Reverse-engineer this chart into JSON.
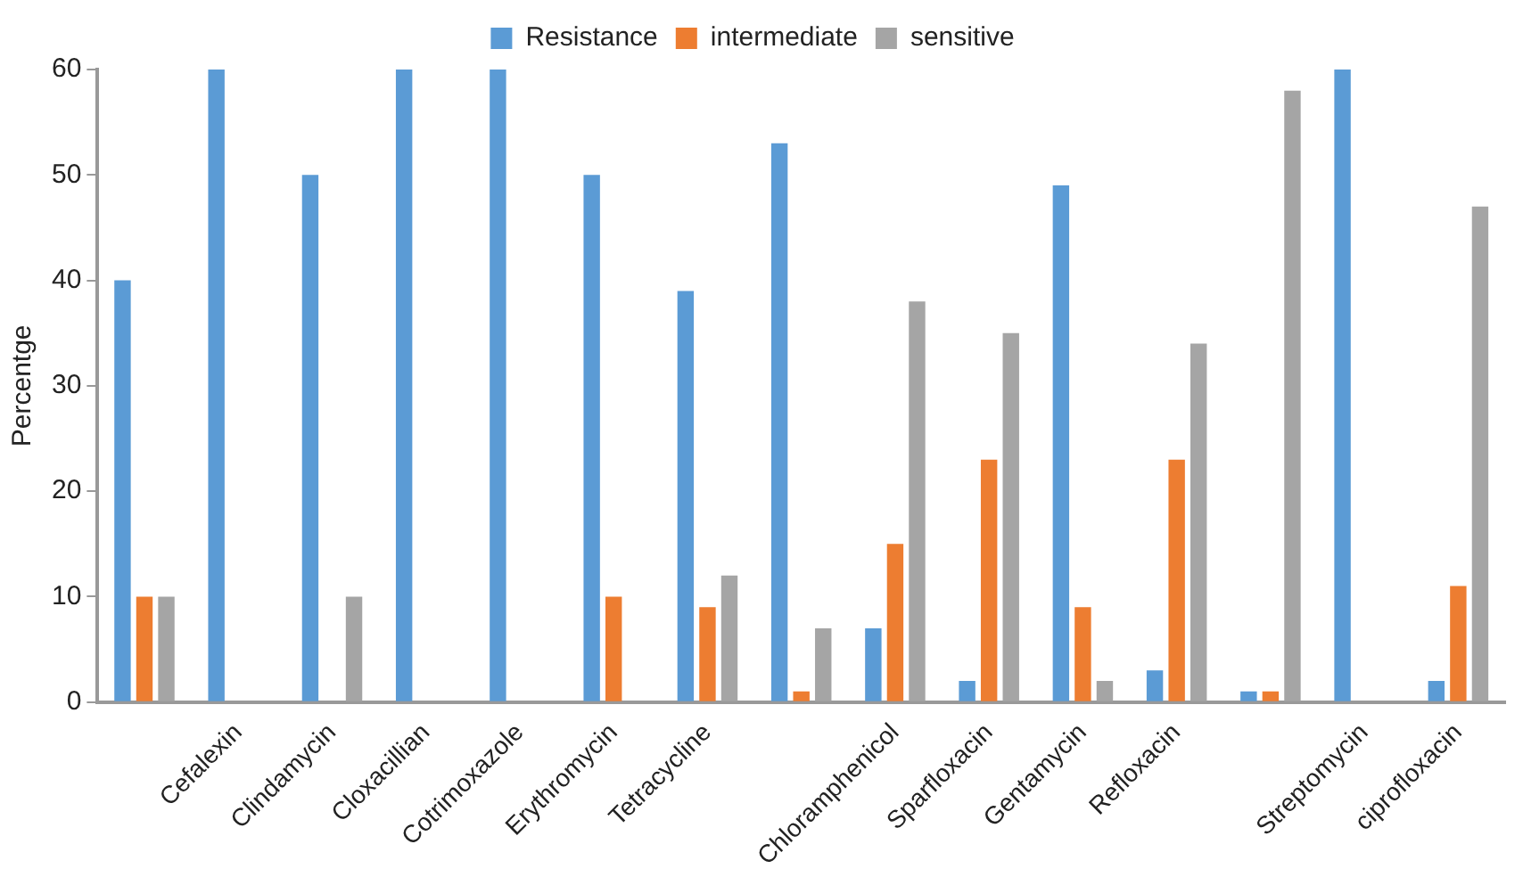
{
  "chart_data": {
    "type": "bar",
    "ylabel": "Percentge",
    "categories": [
      null,
      "Cefalexin",
      "Clindamycin",
      "Cloxacillian",
      "Cotrimoxazole",
      "Erythromycin",
      "Tetracycline",
      null,
      "Chloramphenicol",
      "Sparfloxacin",
      "Gentamycin",
      "Refloxacin",
      null,
      "Streptomycin",
      "ciprofloxacin"
    ],
    "series": [
      {
        "name": "Resistance",
        "color": "#5b9bd5",
        "values": [
          40,
          60,
          50,
          60,
          60,
          50,
          39,
          53,
          7,
          2,
          49,
          3,
          1,
          60,
          2
        ]
      },
      {
        "name": "intermediate",
        "color": "#ed7d31",
        "values": [
          10,
          0,
          0,
          0,
          0,
          10,
          9,
          1,
          15,
          23,
          9,
          23,
          1,
          0,
          11
        ]
      },
      {
        "name": "sensitive",
        "color": "#a5a5a5",
        "values": [
          10,
          0,
          10,
          0,
          0,
          0,
          12,
          7,
          38,
          35,
          2,
          34,
          58,
          0,
          47
        ]
      }
    ],
    "ylim": [
      0,
      60
    ],
    "yticks": [
      0,
      10,
      20,
      30,
      40,
      50,
      60
    ],
    "grid": false,
    "legend": "top"
  }
}
